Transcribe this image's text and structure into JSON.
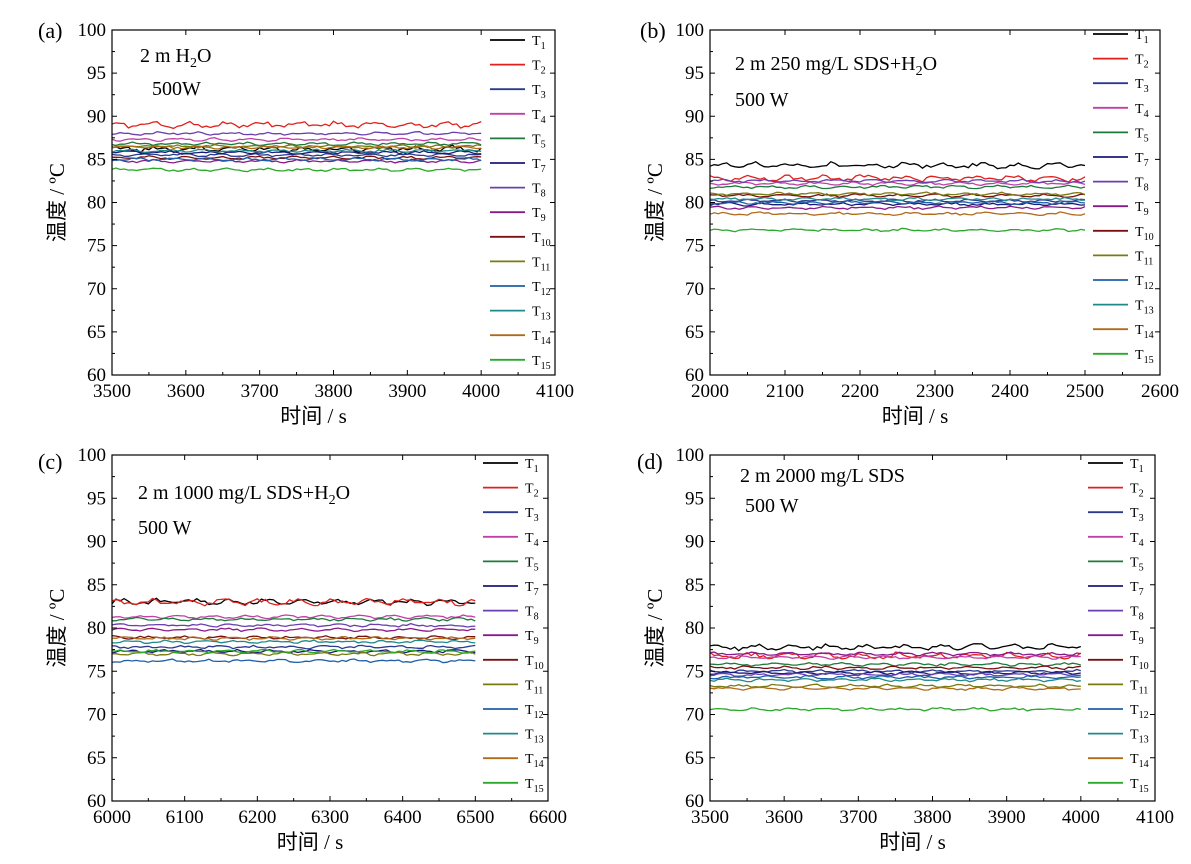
{
  "legend_labels": [
    "T1",
    "T2",
    "T3",
    "T4",
    "T5",
    "T7",
    "T8",
    "T9",
    "T10",
    "T11",
    "T12",
    "T13",
    "T14",
    "T15"
  ],
  "legend_colors": [
    "#000000",
    "#e0201b",
    "#2b3a8f",
    "#c040a8",
    "#1e7a3a",
    "#1a1a7a",
    "#6a3fb0",
    "#8a1a8a",
    "#7a1010",
    "#7a7a10",
    "#1f5fa8",
    "#1f8a8a",
    "#b06a1a",
    "#2aa82a"
  ],
  "chart_data": [
    {
      "type": "line",
      "panel_label": "(a)",
      "annotation": [
        "2 m H₂O",
        "500W"
      ],
      "xlabel": "时间 / s",
      "ylabel": "温度 / ºC",
      "xlim": [
        3500,
        4100
      ],
      "ylim": [
        60,
        100
      ],
      "xticks": [
        3500,
        3600,
        3700,
        3800,
        3900,
        4000,
        4100
      ],
      "yticks": [
        60,
        65,
        70,
        75,
        80,
        85,
        90,
        95,
        100
      ],
      "x": [
        3500,
        4000
      ],
      "grid": false,
      "legend_position": "right",
      "series": [
        {
          "name": "T1",
          "values": [
            86.2,
            86.2
          ]
        },
        {
          "name": "T2",
          "values": [
            89.0,
            89.0
          ]
        },
        {
          "name": "T3",
          "values": [
            85.5,
            85.5
          ]
        },
        {
          "name": "T4",
          "values": [
            87.3,
            87.3
          ]
        },
        {
          "name": "T5",
          "values": [
            86.8,
            86.8
          ]
        },
        {
          "name": "T7",
          "values": [
            85.8,
            85.8
          ]
        },
        {
          "name": "T8",
          "values": [
            88.0,
            88.0
          ]
        },
        {
          "name": "T9",
          "values": [
            84.8,
            84.8
          ]
        },
        {
          "name": "T10",
          "values": [
            85.2,
            85.2
          ]
        },
        {
          "name": "T11",
          "values": [
            86.5,
            86.5
          ]
        },
        {
          "name": "T12",
          "values": [
            85.0,
            85.0
          ]
        },
        {
          "name": "T13",
          "values": [
            86.0,
            86.0
          ]
        },
        {
          "name": "T14",
          "values": [
            86.4,
            86.4
          ]
        },
        {
          "name": "T15",
          "values": [
            83.8,
            83.8
          ]
        }
      ]
    },
    {
      "type": "line",
      "panel_label": "(b)",
      "annotation": [
        "2 m 250 mg/L SDS+H₂O",
        "500 W"
      ],
      "xlabel": "时间 / s",
      "ylabel": "温度 / ºC",
      "xlim": [
        2000,
        2600
      ],
      "ylim": [
        60,
        100
      ],
      "xticks": [
        2000,
        2100,
        2200,
        2300,
        2400,
        2500,
        2600
      ],
      "yticks": [
        60,
        65,
        70,
        75,
        80,
        85,
        90,
        95,
        100
      ],
      "x": [
        2000,
        2500
      ],
      "grid": false,
      "legend_position": "right",
      "series": [
        {
          "name": "T1",
          "values": [
            84.3,
            84.3
          ]
        },
        {
          "name": "T2",
          "values": [
            82.8,
            82.8
          ]
        },
        {
          "name": "T3",
          "values": [
            80.2,
            80.2
          ]
        },
        {
          "name": "T4",
          "values": [
            82.2,
            82.2
          ]
        },
        {
          "name": "T5",
          "values": [
            81.8,
            81.8
          ]
        },
        {
          "name": "T7",
          "values": [
            79.8,
            79.8
          ]
        },
        {
          "name": "T8",
          "values": [
            82.5,
            82.5
          ]
        },
        {
          "name": "T9",
          "values": [
            79.4,
            79.4
          ]
        },
        {
          "name": "T10",
          "values": [
            80.8,
            80.8
          ]
        },
        {
          "name": "T11",
          "values": [
            81.0,
            81.0
          ]
        },
        {
          "name": "T12",
          "values": [
            80.0,
            80.0
          ]
        },
        {
          "name": "T13",
          "values": [
            80.4,
            80.4
          ]
        },
        {
          "name": "T14",
          "values": [
            78.7,
            78.7
          ]
        },
        {
          "name": "T15",
          "values": [
            76.8,
            76.8
          ]
        }
      ]
    },
    {
      "type": "line",
      "panel_label": "(c)",
      "annotation": [
        "2 m 1000 mg/L SDS+H₂O",
        "500 W"
      ],
      "xlabel": "时间 / s",
      "ylabel": "温度 / ºC",
      "xlim": [
        6000,
        6600
      ],
      "ylim": [
        60,
        100
      ],
      "xticks": [
        6000,
        6100,
        6200,
        6300,
        6400,
        6500,
        6600
      ],
      "yticks": [
        60,
        65,
        70,
        75,
        80,
        85,
        90,
        95,
        100
      ],
      "x": [
        6000,
        6500
      ],
      "grid": false,
      "legend_position": "right",
      "series": [
        {
          "name": "T1",
          "values": [
            83.0,
            83.0
          ]
        },
        {
          "name": "T2",
          "values": [
            83.0,
            83.0
          ]
        },
        {
          "name": "T3",
          "values": [
            77.8,
            77.8
          ]
        },
        {
          "name": "T4",
          "values": [
            81.3,
            81.3
          ]
        },
        {
          "name": "T5",
          "values": [
            81.0,
            81.0
          ]
        },
        {
          "name": "T7",
          "values": [
            77.3,
            77.3
          ]
        },
        {
          "name": "T8",
          "values": [
            80.3,
            80.3
          ]
        },
        {
          "name": "T9",
          "values": [
            79.8,
            79.8
          ]
        },
        {
          "name": "T10",
          "values": [
            78.9,
            78.9
          ]
        },
        {
          "name": "T11",
          "values": [
            77.0,
            77.0
          ]
        },
        {
          "name": "T12",
          "values": [
            76.2,
            76.2
          ]
        },
        {
          "name": "T13",
          "values": [
            78.4,
            78.4
          ]
        },
        {
          "name": "T14",
          "values": [
            78.8,
            78.8
          ]
        },
        {
          "name": "T15",
          "values": [
            77.3,
            77.3
          ]
        }
      ]
    },
    {
      "type": "line",
      "panel_label": "(d)",
      "annotation": [
        "2 m 2000 mg/L SDS",
        "500 W"
      ],
      "xlabel": "时间 / s",
      "ylabel": "温度 / ºC",
      "xlim": [
        3500,
        4100
      ],
      "ylim": [
        60,
        100
      ],
      "xticks": [
        3500,
        3600,
        3700,
        3800,
        3900,
        4000,
        4100
      ],
      "yticks": [
        60,
        65,
        70,
        75,
        80,
        85,
        90,
        95,
        100
      ],
      "x": [
        3500,
        4000
      ],
      "grid": false,
      "legend_position": "right",
      "series": [
        {
          "name": "T1",
          "values": [
            77.8,
            77.8
          ]
        },
        {
          "name": "T2",
          "values": [
            76.8,
            76.8
          ]
        },
        {
          "name": "T3",
          "values": [
            75.0,
            75.0
          ]
        },
        {
          "name": "T4",
          "values": [
            76.6,
            76.6
          ]
        },
        {
          "name": "T5",
          "values": [
            75.8,
            75.8
          ]
        },
        {
          "name": "T7",
          "values": [
            74.8,
            74.8
          ]
        },
        {
          "name": "T8",
          "values": [
            74.6,
            74.6
          ]
        },
        {
          "name": "T9",
          "values": [
            77.0,
            77.0
          ]
        },
        {
          "name": "T10",
          "values": [
            75.4,
            75.4
          ]
        },
        {
          "name": "T11",
          "values": [
            73.3,
            73.3
          ]
        },
        {
          "name": "T12",
          "values": [
            74.3,
            74.3
          ]
        },
        {
          "name": "T13",
          "values": [
            74.0,
            74.0
          ]
        },
        {
          "name": "T14",
          "values": [
            73.0,
            73.0
          ]
        },
        {
          "name": "T15",
          "values": [
            70.6,
            70.6
          ]
        }
      ]
    }
  ]
}
